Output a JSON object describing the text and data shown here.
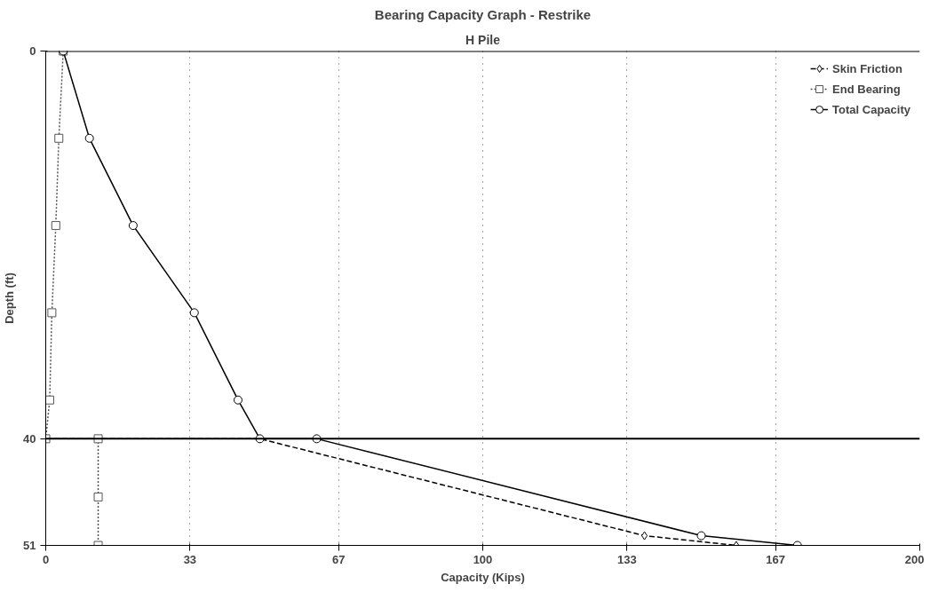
{
  "chart_data": {
    "type": "line",
    "title": "Bearing Capacity Graph - Restrike",
    "subtitle": "H Pile",
    "xlabel": "Capacity (Kips)",
    "ylabel": "Depth (ft)",
    "xlim": [
      0,
      200
    ],
    "xticks": [
      0,
      33,
      67,
      100,
      133,
      167,
      200
    ],
    "ylim": [
      51,
      0
    ],
    "yticks": [
      0,
      40,
      51
    ],
    "grid": "x",
    "ref_lines": [
      {
        "axis": "y",
        "value": 0,
        "color": "#000000"
      },
      {
        "axis": "y",
        "value": 40,
        "color": "#000000"
      }
    ],
    "legend": "top right",
    "series": [
      {
        "name": "Skin Friction",
        "color": "#000000",
        "marker": "diamond",
        "line_style": "dashed",
        "x": [
          0,
          49,
          137,
          158
        ],
        "values": [
          40,
          40,
          50,
          51
        ]
      },
      {
        "name": "End Bearing",
        "color": "#555555",
        "marker": "square",
        "line_style": "dotted",
        "x": [
          4,
          3,
          2.3,
          1.4,
          0.9,
          0,
          12,
          12,
          12
        ],
        "values": [
          0,
          9,
          18,
          27,
          36,
          40,
          40,
          46,
          51
        ]
      },
      {
        "name": "Total Capacity",
        "color": "#000000",
        "marker": "circle",
        "line_style": "solid",
        "x": [
          4,
          10,
          20,
          34,
          44,
          49,
          62,
          150,
          172
        ],
        "values": [
          0,
          9,
          18,
          27,
          36,
          40,
          40,
          50,
          51
        ]
      }
    ]
  }
}
